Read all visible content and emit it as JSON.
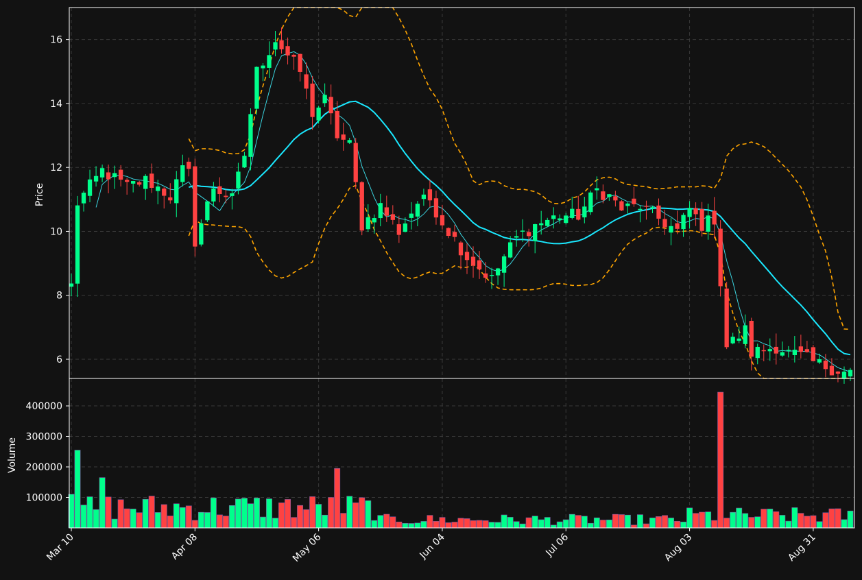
{
  "chart_data": {
    "type": "candlestick",
    "background": "#121212",
    "colors": {
      "up": "#00ff8c",
      "down": "#ff4242",
      "ma_fast": "#3bd5e0",
      "ma_slow": "#1ae8ff",
      "bands": "#ffa500",
      "grid": "#3a3a3a",
      "axis": "#ffffff"
    },
    "grid": true,
    "price_panel": {
      "ylabel": "Price",
      "ylim": [
        5.4,
        17.0
      ],
      "yticks": [
        6,
        8,
        10,
        12,
        14,
        16
      ]
    },
    "volume_panel": {
      "ylabel": "Volume",
      "ylim": [
        0,
        490000
      ],
      "yticks": [
        100000,
        200000,
        300000,
        400000
      ]
    },
    "x_ticks": [
      {
        "label": "Mar 10",
        "index": 0
      },
      {
        "label": "Apr 08",
        "index": 20
      },
      {
        "label": "May 06",
        "index": 40
      },
      {
        "label": "Jun 04",
        "index": 60
      },
      {
        "label": "Jul 06",
        "index": 80
      },
      {
        "label": "Aug 03",
        "index": 100
      },
      {
        "label": "Aug 31",
        "index": 120
      }
    ],
    "ohlc_anchors": [
      [
        0,
        8.3
      ],
      [
        1,
        10.9
      ],
      [
        5,
        11.9
      ],
      [
        9,
        11.4
      ],
      [
        12,
        11.6
      ],
      [
        13,
        11.5
      ],
      [
        16,
        11.1
      ],
      [
        18,
        11.9
      ],
      [
        19,
        11.8
      ],
      [
        20,
        9.7
      ],
      [
        23,
        11.4
      ],
      [
        26,
        11.0
      ],
      [
        28,
        12.4
      ],
      [
        30,
        15.0
      ],
      [
        33,
        16.0
      ],
      [
        37,
        15.0
      ],
      [
        39,
        13.7
      ],
      [
        41,
        14.1
      ],
      [
        43,
        13.0
      ],
      [
        45,
        12.7
      ],
      [
        47,
        10.2
      ],
      [
        50,
        10.8
      ],
      [
        53,
        10.0
      ],
      [
        56,
        10.9
      ],
      [
        58,
        11.0
      ],
      [
        60,
        10.3
      ],
      [
        64,
        9.2
      ],
      [
        68,
        8.5
      ],
      [
        70,
        9.2
      ],
      [
        72,
        9.8
      ],
      [
        75,
        10.2
      ],
      [
        79,
        10.5
      ],
      [
        82,
        10.5
      ],
      [
        85,
        11.3
      ],
      [
        87,
        11.1
      ],
      [
        89,
        10.7
      ],
      [
        92,
        10.8
      ],
      [
        95,
        10.4
      ],
      [
        98,
        10.0
      ],
      [
        100,
        10.7
      ],
      [
        102,
        10.2
      ],
      [
        104,
        10.4
      ],
      [
        106,
        6.4
      ],
      [
        109,
        6.9
      ],
      [
        110,
        6.2
      ],
      [
        114,
        6.4
      ],
      [
        116,
        6.2
      ],
      [
        118,
        6.1
      ],
      [
        120,
        5.9
      ],
      [
        125,
        5.6
      ]
    ],
    "volume_spikes": [
      {
        "index": 1,
        "value": 255000
      },
      {
        "index": 5,
        "value": 165000
      },
      {
        "index": 43,
        "value": 195000
      },
      {
        "index": 105,
        "value": 445000
      }
    ],
    "series": [
      {
        "name": "",
        "kind": "ohlc"
      },
      {
        "name": "",
        "kind": "ma_fast",
        "window": 5
      },
      {
        "name": "",
        "kind": "ma_slow",
        "window": 20
      },
      {
        "name": "",
        "kind": "bollinger_upper"
      },
      {
        "name": "",
        "kind": "bollinger_lower"
      },
      {
        "name": "",
        "kind": "volume"
      }
    ],
    "n_bars": 127
  }
}
